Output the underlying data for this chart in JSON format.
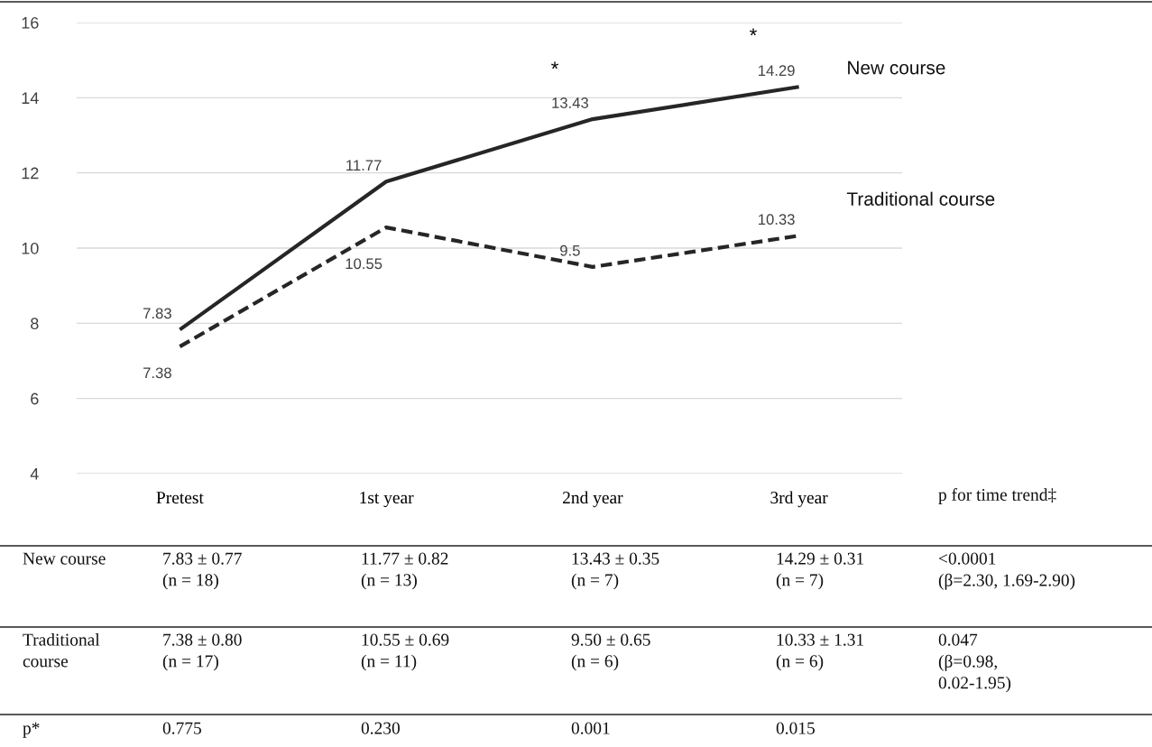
{
  "chart_data": {
    "type": "line",
    "categories": [
      "Pretest",
      "1st year",
      "2nd year",
      "3rd year"
    ],
    "series": [
      {
        "name": "New course",
        "color": "#262626",
        "line_style": "solid",
        "values": [
          7.83,
          11.77,
          13.43,
          14.29
        ]
      },
      {
        "name": "Traditional course",
        "color": "#262626",
        "line_style": "dashed",
        "values": [
          7.38,
          10.55,
          9.5,
          10.33
        ]
      }
    ],
    "ylim": [
      4,
      16
    ],
    "yticks": [
      4,
      6,
      8,
      10,
      12,
      14,
      16
    ],
    "grid": "y",
    "legend": false,
    "marker": "none",
    "data_labels": true,
    "annotations": [
      "*",
      "*",
      "p for time trend‡",
      "New course",
      "7.83 ± 0.77\n(n = 18)",
      "11.77 ± 0.82\n(n = 13)",
      "13.43 ± 0.35\n(n = 7)",
      "14.29 ± 0.31\n(n = 7)",
      "<0.0001\n(β=2.30, 1.69-2.90)",
      "Traditional\ncourse",
      "7.38 ± 0.80\n(n = 17)",
      "10.55 ± 0.69\n(n = 11)",
      "9.50 ± 0.65\n(n = 6)",
      "10.33 ± 1.31\n(n = 6)",
      "0.047\n(β=0.98,\n0.02-1.95)",
      "p*",
      "0.775",
      "0.230",
      "0.001",
      "0.015"
    ]
  }
}
